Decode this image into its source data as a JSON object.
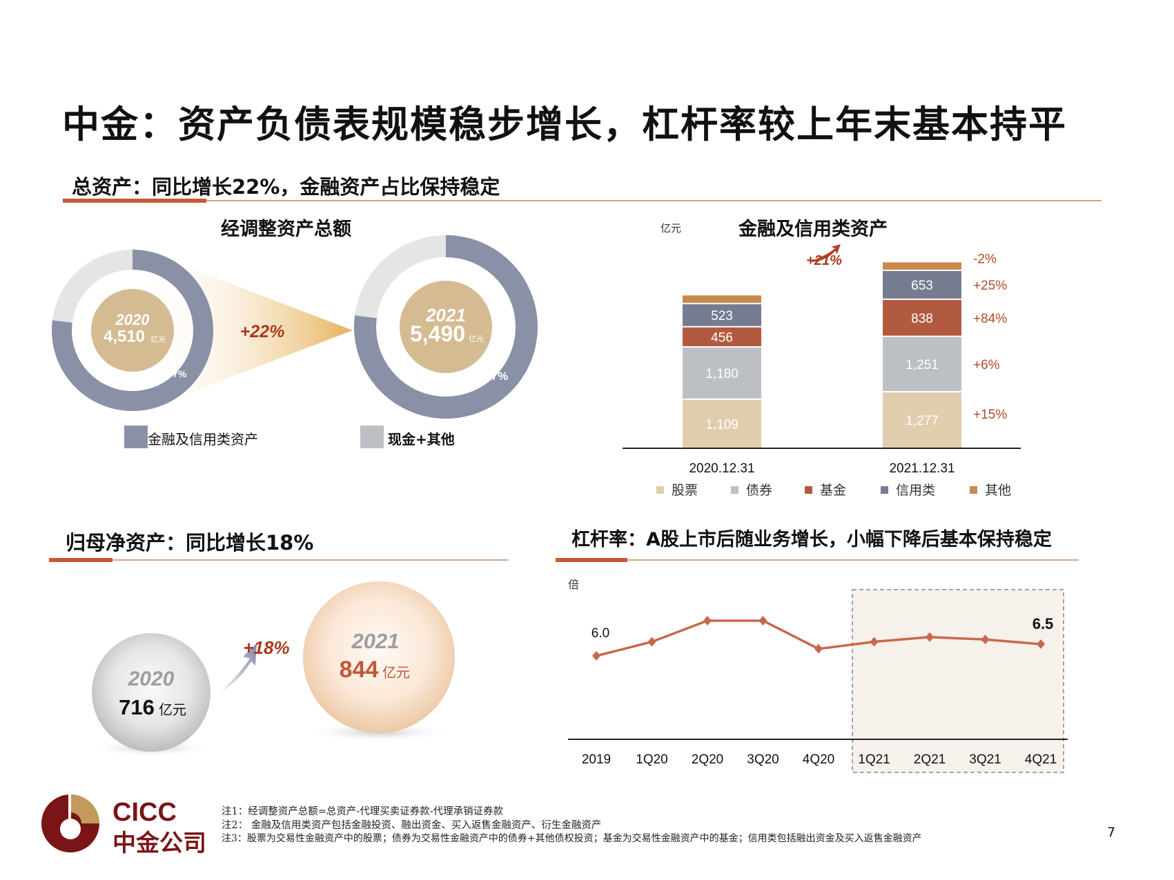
{
  "title": "中金：资产负债表规模稳步增长，杠杆率较上年末基本持平",
  "section_assets": {
    "heading": "总资产：同比增长22%，金融资产占比保持稳定"
  },
  "adjusted_assets": {
    "title": "经调整资产总额",
    "growth": "+22%",
    "unit": "亿元",
    "years": [
      {
        "year": "2020",
        "value": "4,510",
        "pct_label": "77%",
        "pct": 77
      },
      {
        "year": "2021",
        "value": "5,490",
        "pct_label": "77%",
        "pct": 77
      }
    ],
    "legend": [
      "金融及信用类资产",
      "现金+其他"
    ],
    "colors": {
      "financial": "#8a90a6",
      "cash": "#e4e5e5",
      "center": "#d4bb92"
    }
  },
  "chart_data": [
    {
      "type": "bar",
      "stacked": true,
      "title": "金融及信用类资产",
      "unit": "亿元",
      "categories": [
        "2020.12.31",
        "2021.12.31"
      ],
      "series": [
        {
          "name": "股票",
          "values": [
            1109,
            1277
          ],
          "labels": [
            "1,109",
            "1,277"
          ],
          "growth": "+15%",
          "color": "#e0cdae"
        },
        {
          "name": "债券",
          "values": [
            1180,
            1251
          ],
          "labels": [
            "1,180",
            "1,251"
          ],
          "growth": "+6%",
          "color": "#bcbfc3"
        },
        {
          "name": "基金",
          "values": [
            456,
            838
          ],
          "labels": [
            "456",
            "838"
          ],
          "growth": "+84%",
          "color": "#b25a3f"
        },
        {
          "name": "信用类",
          "values": [
            523,
            653
          ],
          "labels": [
            "523",
            "653"
          ],
          "growth": "+25%",
          "color": "#767c90"
        },
        {
          "name": "其他",
          "values": [
            200,
            196
          ],
          "labels": [
            "",
            ""
          ],
          "growth": "-2%",
          "color": "#c98a4b"
        }
      ],
      "total_growth": "+21%",
      "legend_position": "bottom"
    },
    {
      "type": "line",
      "title": "杠杆率",
      "ylabel": "倍",
      "x": [
        "2019",
        "1Q20",
        "2Q20",
        "3Q20",
        "4Q20",
        "1Q21",
        "2Q21",
        "3Q21",
        "4Q21"
      ],
      "values": [
        6.0,
        6.6,
        7.5,
        7.5,
        6.3,
        6.6,
        6.8,
        6.7,
        6.5
      ],
      "data_labels": {
        "first": "6.0",
        "last": "6.5"
      },
      "highlight_range": [
        "1Q21",
        "4Q21"
      ],
      "color": "#c8684a"
    }
  ],
  "section_equity": {
    "heading": "归母净资产：同比增长18%",
    "growth": "+18%",
    "y2020": "2020",
    "v2020": "716",
    "y2021": "2021",
    "v2021": "844",
    "unit": "亿元"
  },
  "section_leverage": {
    "heading": "杠杆率：A股上市后随业务增长，小幅下降后基本保持稳定"
  },
  "logo": {
    "en": "CICC",
    "cn": "中金公司"
  },
  "notes": [
    "注1：经调整资产总额=总资产-代理买卖证券款-代理承销证券款",
    "注2： 金融及信用类资产包括金融投资、融出资金、买入返售金融资产、衍生金融资产",
    "注3：股票为交易性金融资产中的股票；债券为交易性金融资产中的债券+其他债权投资；基金为交易性金融资产中的基金；信用类包括融出资金及买入返售金融资产"
  ],
  "page_number": "7"
}
